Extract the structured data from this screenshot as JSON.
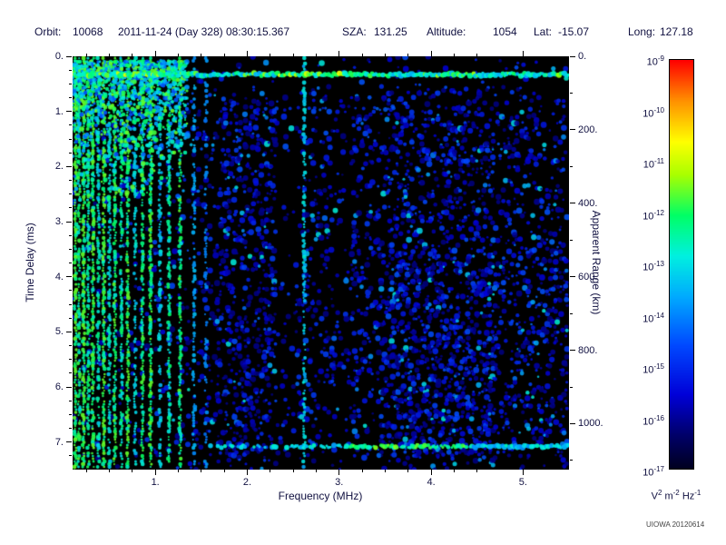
{
  "header": {
    "orbit_label": "Orbit:",
    "orbit_value": "10068",
    "datetime": "2011-11-24 (Day 328) 08:30:15.367",
    "sza_label": "SZA:",
    "sza_value": "131.25",
    "altitude_label": "Altitude:",
    "altitude_value": "1054",
    "lat_label": "Lat:",
    "lat_value": "-15.07",
    "long_label": "Long:",
    "long_value": "127.18"
  },
  "footer": {
    "credit": "UIOWA 20120614"
  },
  "chart_data": {
    "type": "heatmap",
    "subtype": "radar-sounder-ionogram",
    "xlabel": "Frequency (MHz)",
    "ylabel": "Time Delay (ms)",
    "y2label": "Apparent Range (km)",
    "x_range": [
      0.1,
      5.5
    ],
    "y_range": [
      0,
      7.5
    ],
    "y2_range": [
      0,
      1125
    ],
    "x_ticks": [
      1,
      2,
      3,
      4,
      5
    ],
    "x_tick_labels": [
      "1.",
      "2.",
      "3.",
      "4.",
      "5."
    ],
    "x_minor_step": 0.25,
    "y_ticks": [
      0,
      1,
      2,
      3,
      4,
      5,
      6,
      7
    ],
    "y_tick_labels": [
      "0.",
      "1.",
      "2.",
      "3.",
      "4.",
      "5.",
      "6.",
      "7."
    ],
    "y_minor_step": 0.25,
    "y2_ticks": [
      0,
      200,
      400,
      600,
      800,
      1000
    ],
    "y2_tick_labels": [
      "0.",
      "200.",
      "400.",
      "600.",
      "800.",
      "1000."
    ],
    "y2_minor_step": 100,
    "grid": false,
    "background": "#000000",
    "colorbar": {
      "scale": "log",
      "base": "10",
      "exponents": [
        "-9",
        "-10",
        "-11",
        "-12",
        "-13",
        "-14",
        "-15",
        "-16",
        "-17"
      ],
      "unit_segments": [
        {
          "t": "V",
          "s": "2"
        },
        {
          "t": " m",
          "s": "-2"
        },
        {
          "t": " Hz",
          "s": "-1"
        }
      ]
    },
    "colormap": [
      [
        0.0,
        "#000020"
      ],
      [
        0.08,
        "#000068"
      ],
      [
        0.18,
        "#0000d8"
      ],
      [
        0.3,
        "#0048ff"
      ],
      [
        0.42,
        "#00aaff"
      ],
      [
        0.52,
        "#00f0e0"
      ],
      [
        0.62,
        "#00ff66"
      ],
      [
        0.72,
        "#aaff00"
      ],
      [
        0.8,
        "#ffff00"
      ],
      [
        0.9,
        "#ff9100"
      ],
      [
        1.0,
        "#ff0000"
      ]
    ],
    "features": {
      "noise_bands": [
        [
          0.1,
          1.35,
          0.05
        ],
        [
          1.35,
          1.65,
          0.1
        ],
        [
          1.65,
          2.33,
          0.2
        ],
        [
          2.33,
          2.55,
          0.04
        ],
        [
          2.55,
          2.95,
          0.1
        ],
        [
          2.95,
          3.15,
          0.07
        ],
        [
          3.15,
          3.5,
          0.13
        ],
        [
          3.5,
          4.7,
          0.2
        ],
        [
          4.7,
          5.5,
          0.13
        ]
      ],
      "plasma_lines": [
        [
          0.13,
          0.95
        ],
        [
          0.17,
          0.8
        ],
        [
          0.22,
          0.95
        ],
        [
          0.27,
          0.75
        ],
        [
          0.32,
          0.9
        ],
        [
          0.38,
          0.65
        ],
        [
          0.44,
          0.95
        ],
        [
          0.5,
          0.6
        ],
        [
          0.56,
          0.85
        ],
        [
          0.63,
          0.7
        ],
        [
          0.7,
          0.9
        ],
        [
          0.78,
          0.55
        ],
        [
          0.86,
          0.8
        ],
        [
          0.95,
          0.9
        ],
        [
          1.05,
          0.5
        ],
        [
          1.15,
          0.7
        ],
        [
          1.27,
          0.8
        ],
        [
          1.42,
          0.35
        ],
        [
          1.55,
          0.25
        ],
        [
          2.62,
          0.5
        ]
      ],
      "ionospheric_clutter": {
        "f_max": 1.35,
        "d_max": 1.3,
        "density": 0.7
      },
      "surface_echo": {
        "delay_ms": 0.33,
        "bright_from": 2.3,
        "bright_to": 3.3
      },
      "second_echo": {
        "delay_ms": 0.95,
        "f_from": 2.2,
        "f_to": 3.6
      },
      "late_echo": {
        "delay_ms": 7.08,
        "f_from": 1.6,
        "f_to": 5.5,
        "bright_from": 3.1,
        "bright_to": 4.4
      }
    }
  }
}
